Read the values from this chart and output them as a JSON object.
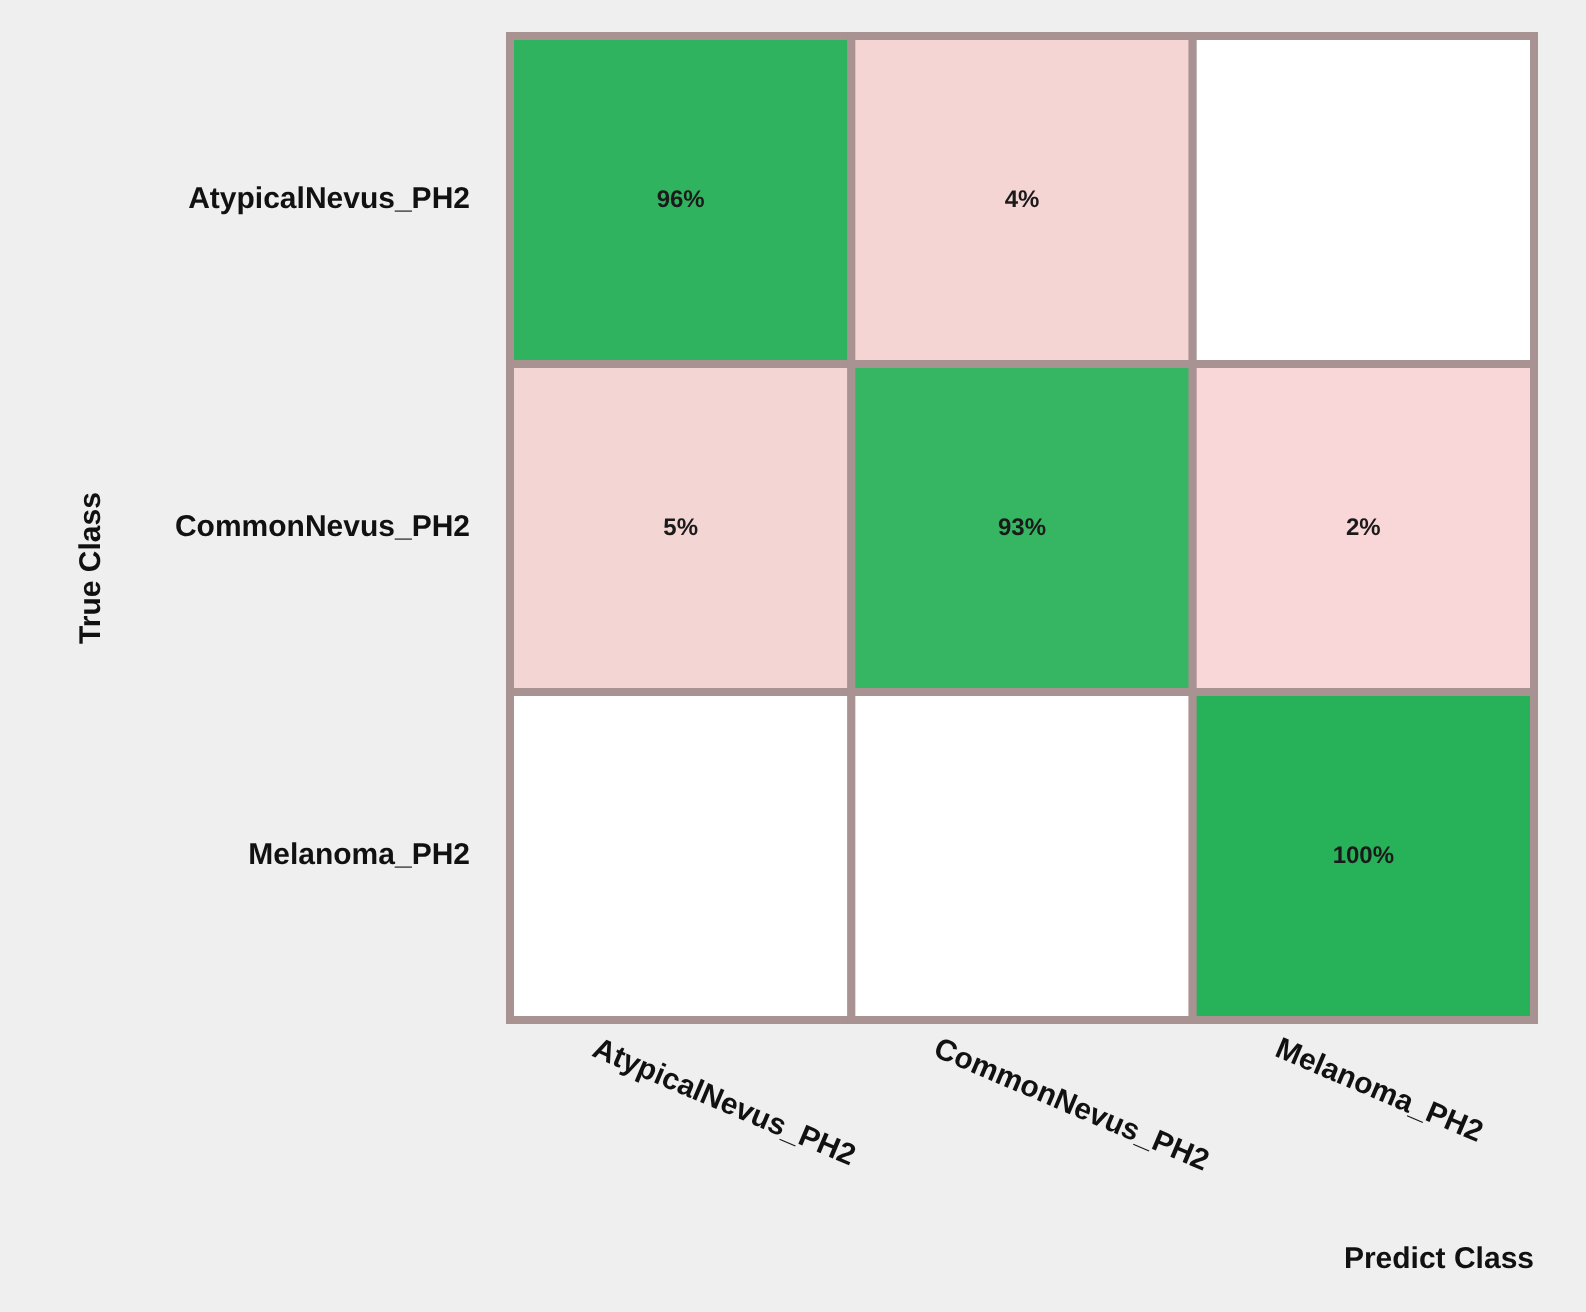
{
  "chart_data": {
    "type": "heatmap",
    "xlabel": "Predict Class",
    "ylabel": "True Class",
    "categories": [
      "AtypicalNevus_PH2",
      "CommonNevus_PH2",
      "Melanoma_PH2"
    ],
    "y_categories": [
      "AtypicalNevus_PH2",
      "CommonNevus_PH2",
      "Melanoma_PH2"
    ],
    "cells": [
      [
        96,
        4,
        null
      ],
      [
        5,
        93,
        2
      ],
      [
        null,
        null,
        100
      ]
    ],
    "cell_labels": [
      [
        "96%",
        "4%",
        null
      ],
      [
        "5%",
        "93%",
        "2%"
      ],
      [
        null,
        null,
        "100%"
      ]
    ]
  }
}
